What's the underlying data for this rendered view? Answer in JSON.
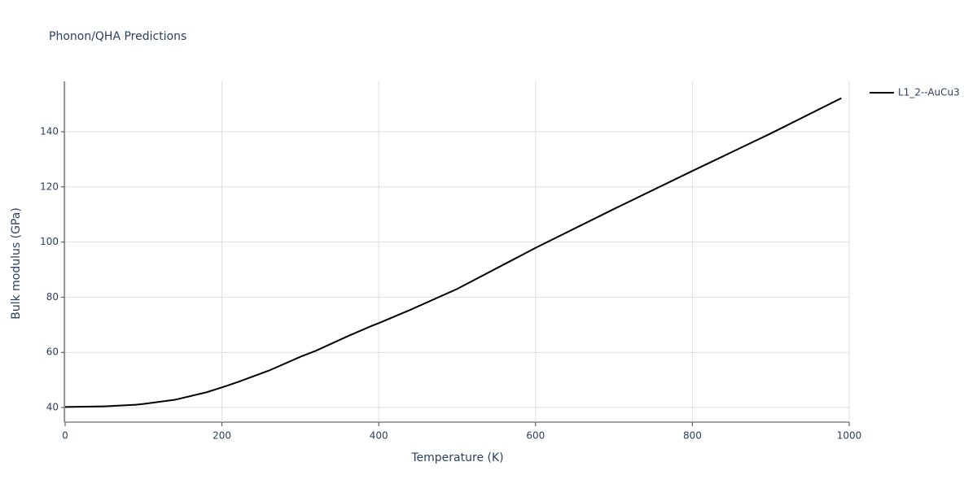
{
  "chart_data": {
    "type": "line",
    "title": "Phonon/QHA Predictions",
    "x_label": "Temperature (K)",
    "y_label": "Bulk modulus (GPa)",
    "x": [
      0,
      50,
      90,
      100,
      140,
      180,
      200,
      220,
      260,
      300,
      320,
      360,
      390,
      400,
      440,
      500,
      600,
      700,
      800,
      900,
      990
    ],
    "series": [
      {
        "name": "L1_2--AuCu3",
        "color": "#000000",
        "values": [
          40.2,
          40.4,
          41.0,
          41.3,
          42.8,
          45.5,
          47.3,
          49.2,
          53.4,
          58.4,
          60.6,
          65.8,
          69.5,
          70.6,
          75.4,
          83.0,
          97.9,
          112.0,
          125.8,
          139.4,
          152.2
        ]
      }
    ],
    "xlim": [
      0,
      1000
    ],
    "xticks": [
      0,
      200,
      400,
      600,
      800,
      1000
    ],
    "ylim": [
      34.7,
      158.3
    ],
    "yticks": [
      40,
      60,
      80,
      100,
      120,
      140
    ],
    "grid": true,
    "legend": "top-right"
  }
}
